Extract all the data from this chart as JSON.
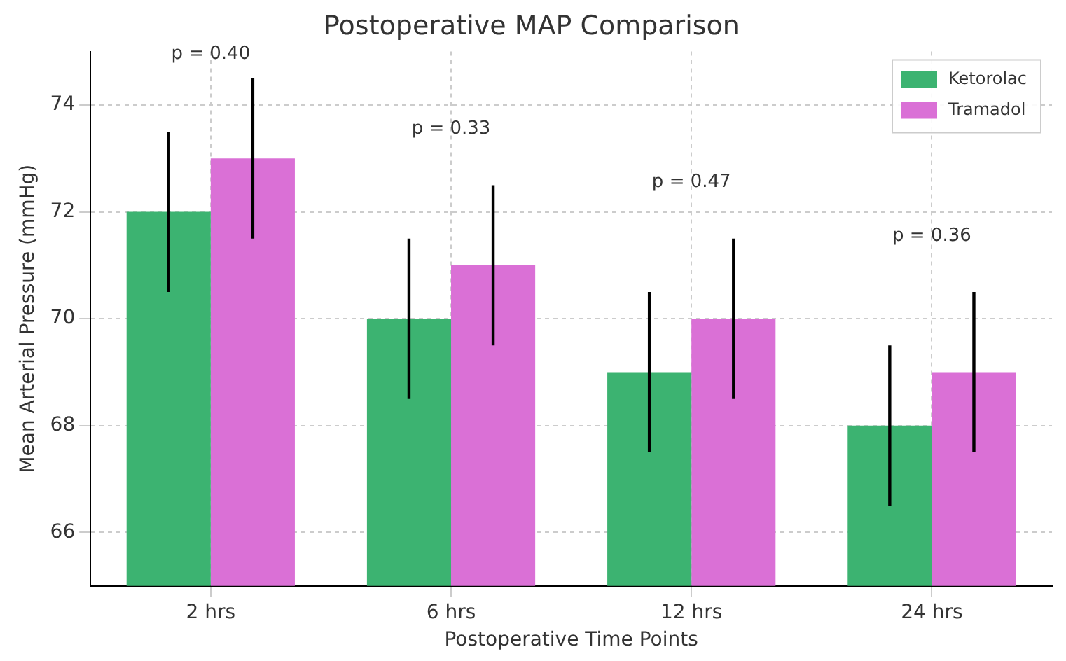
{
  "chart_data": {
    "type": "bar",
    "title": "Postoperative MAP Comparison",
    "xlabel": "Postoperative Time Points",
    "ylabel": "Mean Arterial Pressure (mmHg)",
    "categories": [
      "2 hrs",
      "6 hrs",
      "12 hrs",
      "24 hrs"
    ],
    "series": [
      {
        "name": "Ketorolac",
        "color": "#3cb371",
        "values": [
          72,
          70,
          69,
          68
        ],
        "errors": [
          1.5,
          1.5,
          1.5,
          1.5
        ]
      },
      {
        "name": "Tramadol",
        "color": "#da70d6",
        "values": [
          73,
          71,
          70,
          69
        ],
        "errors": [
          1.5,
          1.5,
          1.5,
          1.5
        ]
      }
    ],
    "ylim": [
      65,
      75
    ],
    "yticks": [
      66,
      68,
      70,
      72,
      74
    ],
    "grid": true,
    "legend": "top right",
    "annotations": [
      "p = 0.40",
      "p = 0.33",
      "p = 0.47",
      "p = 0.36"
    ]
  }
}
